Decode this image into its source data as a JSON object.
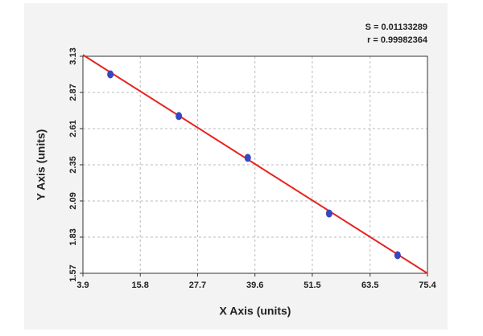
{
  "chart_data": {
    "type": "scatter",
    "annotations": [
      "S = 0.01133289",
      "r = 0.99982364"
    ],
    "x_label": "X Axis (units)",
    "y_label": "Y Axis (units)",
    "x": [
      9.6,
      23.8,
      38.1,
      55.0,
      69.2
    ],
    "values": [
      3.0,
      2.7,
      2.4,
      2.0,
      1.7
    ],
    "color": "#3548c0",
    "fit": {
      "x": [
        3.9,
        75.4
      ],
      "values": [
        3.14,
        1.57
      ],
      "color": "#e8231f"
    },
    "xlim": [
      3.9,
      75.4
    ],
    "xticks": [
      3.9,
      15.8,
      27.7,
      39.6,
      51.5,
      63.5,
      75.4
    ],
    "ylim": [
      1.57,
      3.13
    ],
    "yticks": [
      1.57,
      1.83,
      2.09,
      2.35,
      2.61,
      2.87,
      3.13
    ],
    "grid": true
  }
}
